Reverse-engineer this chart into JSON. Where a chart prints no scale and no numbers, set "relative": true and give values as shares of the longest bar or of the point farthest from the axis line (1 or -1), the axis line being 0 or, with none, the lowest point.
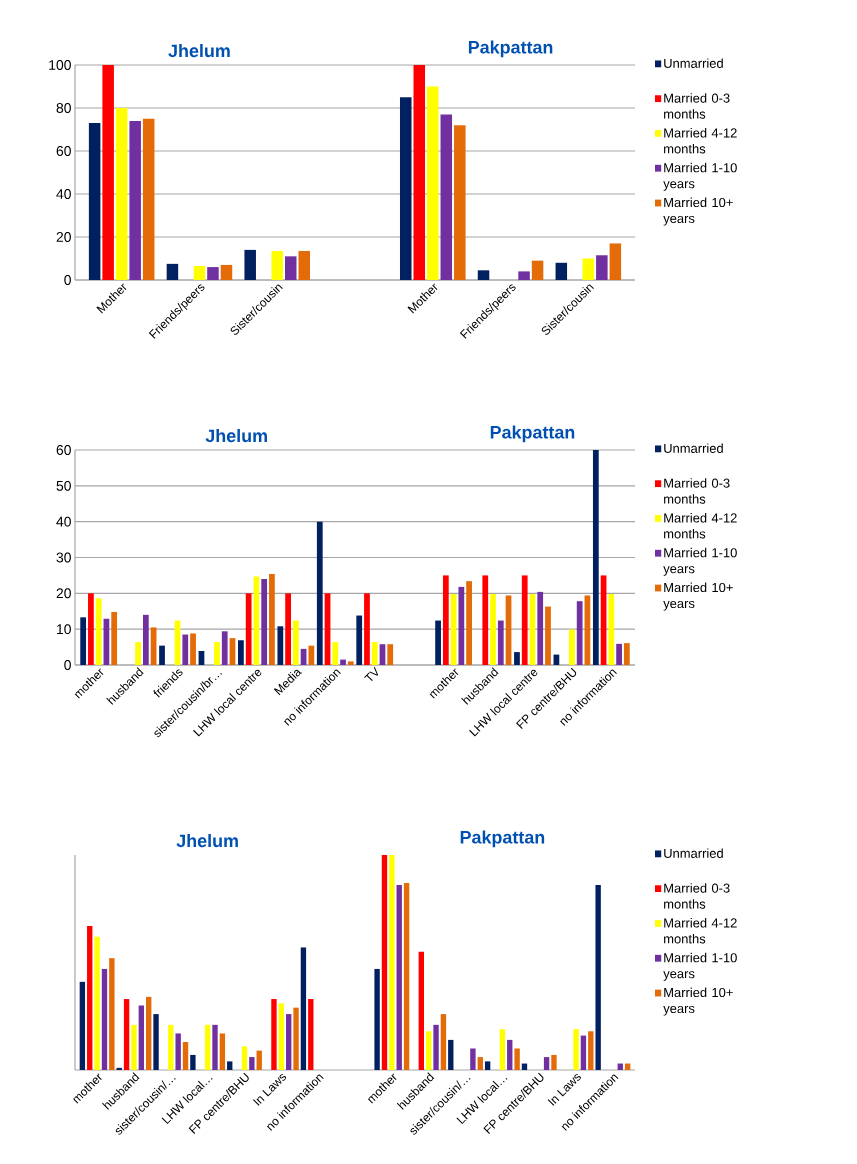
{
  "chart_data": [
    {
      "type": "bar",
      "annotations": [
        "Jhelum",
        "Pakpattan"
      ],
      "categories": [
        "Mother",
        "Friends/peers",
        "Sister/cousin",
        null,
        "Mother",
        "Friends/peers",
        "Sister/cousin"
      ],
      "ylim": [
        0,
        100
      ],
      "yticks": [
        0,
        20,
        40,
        60,
        80,
        100
      ],
      "grid": "y",
      "legend": "right",
      "series": [
        {
          "name": "Unmarried",
          "color": "#002060",
          "values": [
            73,
            7.5,
            14,
            null,
            85,
            4.5,
            8
          ]
        },
        {
          "name": "Married 0-3 months",
          "color": "#ff0000",
          "values": [
            100,
            0,
            0,
            null,
            100,
            0,
            0
          ]
        },
        {
          "name": "Married 4-12 months",
          "color": "#ffff00",
          "values": [
            80,
            6.5,
            13.5,
            null,
            90,
            0,
            10
          ]
        },
        {
          "name": "Married 1-10 years",
          "color": "#7030a0",
          "values": [
            74,
            6,
            11,
            null,
            77,
            4,
            11.5
          ]
        },
        {
          "name": "Married 10+ years",
          "color": "#e36c09",
          "values": [
            75,
            7,
            13.5,
            null,
            72,
            9,
            17
          ]
        }
      ]
    },
    {
      "type": "bar",
      "annotations": [
        "Jhelum",
        "Pakpattan"
      ],
      "categories": [
        "mother",
        "husband",
        "friends",
        "sister/cousin/br…",
        "LHW local centre",
        "Media",
        "no information",
        "TV",
        null,
        "mother",
        "husband",
        "LHW local centre",
        "FP centre/BHU",
        "no information"
      ],
      "ylim": [
        0,
        60
      ],
      "yticks": [
        0,
        10,
        20,
        30,
        40,
        50,
        60
      ],
      "grid": "y",
      "legend": "right",
      "series": [
        {
          "name": "Unmarried",
          "color": "#002060",
          "values": [
            13.3,
            0,
            5.4,
            3.9,
            6.9,
            10.8,
            40,
            13.8,
            null,
            12.4,
            0,
            3.6,
            2.9,
            60
          ]
        },
        {
          "name": "Married 0-3 months",
          "color": "#ff0000",
          "values": [
            20,
            0,
            0,
            0,
            20,
            20,
            20,
            20,
            null,
            25,
            25,
            25,
            0,
            25
          ]
        },
        {
          "name": "Married 4-12 months",
          "color": "#ffff00",
          "values": [
            18.6,
            6.4,
            12.4,
            6.4,
            24.7,
            12.4,
            6.4,
            6.4,
            null,
            19.8,
            19.8,
            19.8,
            9.9,
            19.8
          ]
        },
        {
          "name": "Married 1-10 years",
          "color": "#7030a0",
          "values": [
            12.9,
            14,
            8.5,
            9.4,
            24,
            4.5,
            1.5,
            5.8,
            null,
            21.8,
            12.4,
            20.4,
            17.8,
            5.9
          ]
        },
        {
          "name": "Married 10+ years",
          "color": "#e36c09",
          "values": [
            14.8,
            10.5,
            8.8,
            7.5,
            25.4,
            5.4,
            1,
            5.8,
            null,
            23.4,
            19.4,
            16.3,
            19.4,
            6.1
          ]
        }
      ]
    },
    {
      "type": "bar",
      "annotations": [
        "Jhelum",
        "Pakpattan"
      ],
      "relative": true,
      "categories": [
        "mother",
        "husband",
        "sister/cousin/…",
        "LHW local…",
        "FP centre/BHU",
        "In Laws",
        "no information",
        null,
        "mother",
        "husband",
        "sister/cousin/…",
        "LHW local…",
        "FP centre/BHU",
        "In Laws",
        "no information"
      ],
      "legend": "right",
      "series": [
        {
          "name": "Unmarried",
          "color": "#002060",
          "values": [
            0.41,
            0.01,
            0.26,
            0.07,
            0.04,
            0,
            0.57,
            null,
            0.47,
            0,
            0.14,
            0.04,
            0.03,
            0,
            0.86
          ]
        },
        {
          "name": "Married 0-3 months",
          "color": "#ff0000",
          "values": [
            0.67,
            0.33,
            0,
            0,
            0,
            0.33,
            0.33,
            null,
            1,
            0.55,
            0,
            0,
            0,
            0,
            0
          ]
        },
        {
          "name": "Married 4-12 months",
          "color": "#ffff00",
          "values": [
            0.62,
            0.21,
            0.21,
            0.21,
            0.11,
            0.31,
            0,
            null,
            1,
            0.18,
            0,
            0.19,
            0,
            0.19,
            0
          ]
        },
        {
          "name": "Married 1-10 years",
          "color": "#7030a0",
          "values": [
            0.47,
            0.3,
            0.17,
            0.21,
            0.06,
            0.26,
            0,
            null,
            0.86,
            0.21,
            0.1,
            0.14,
            0.06,
            0.16,
            0.03
          ]
        },
        {
          "name": "Married 10+ years",
          "color": "#e36c09",
          "values": [
            0.52,
            0.34,
            0.13,
            0.17,
            0.09,
            0.29,
            0,
            null,
            0.87,
            0.26,
            0.06,
            0.1,
            0.07,
            0.18,
            0.03
          ]
        }
      ]
    }
  ]
}
